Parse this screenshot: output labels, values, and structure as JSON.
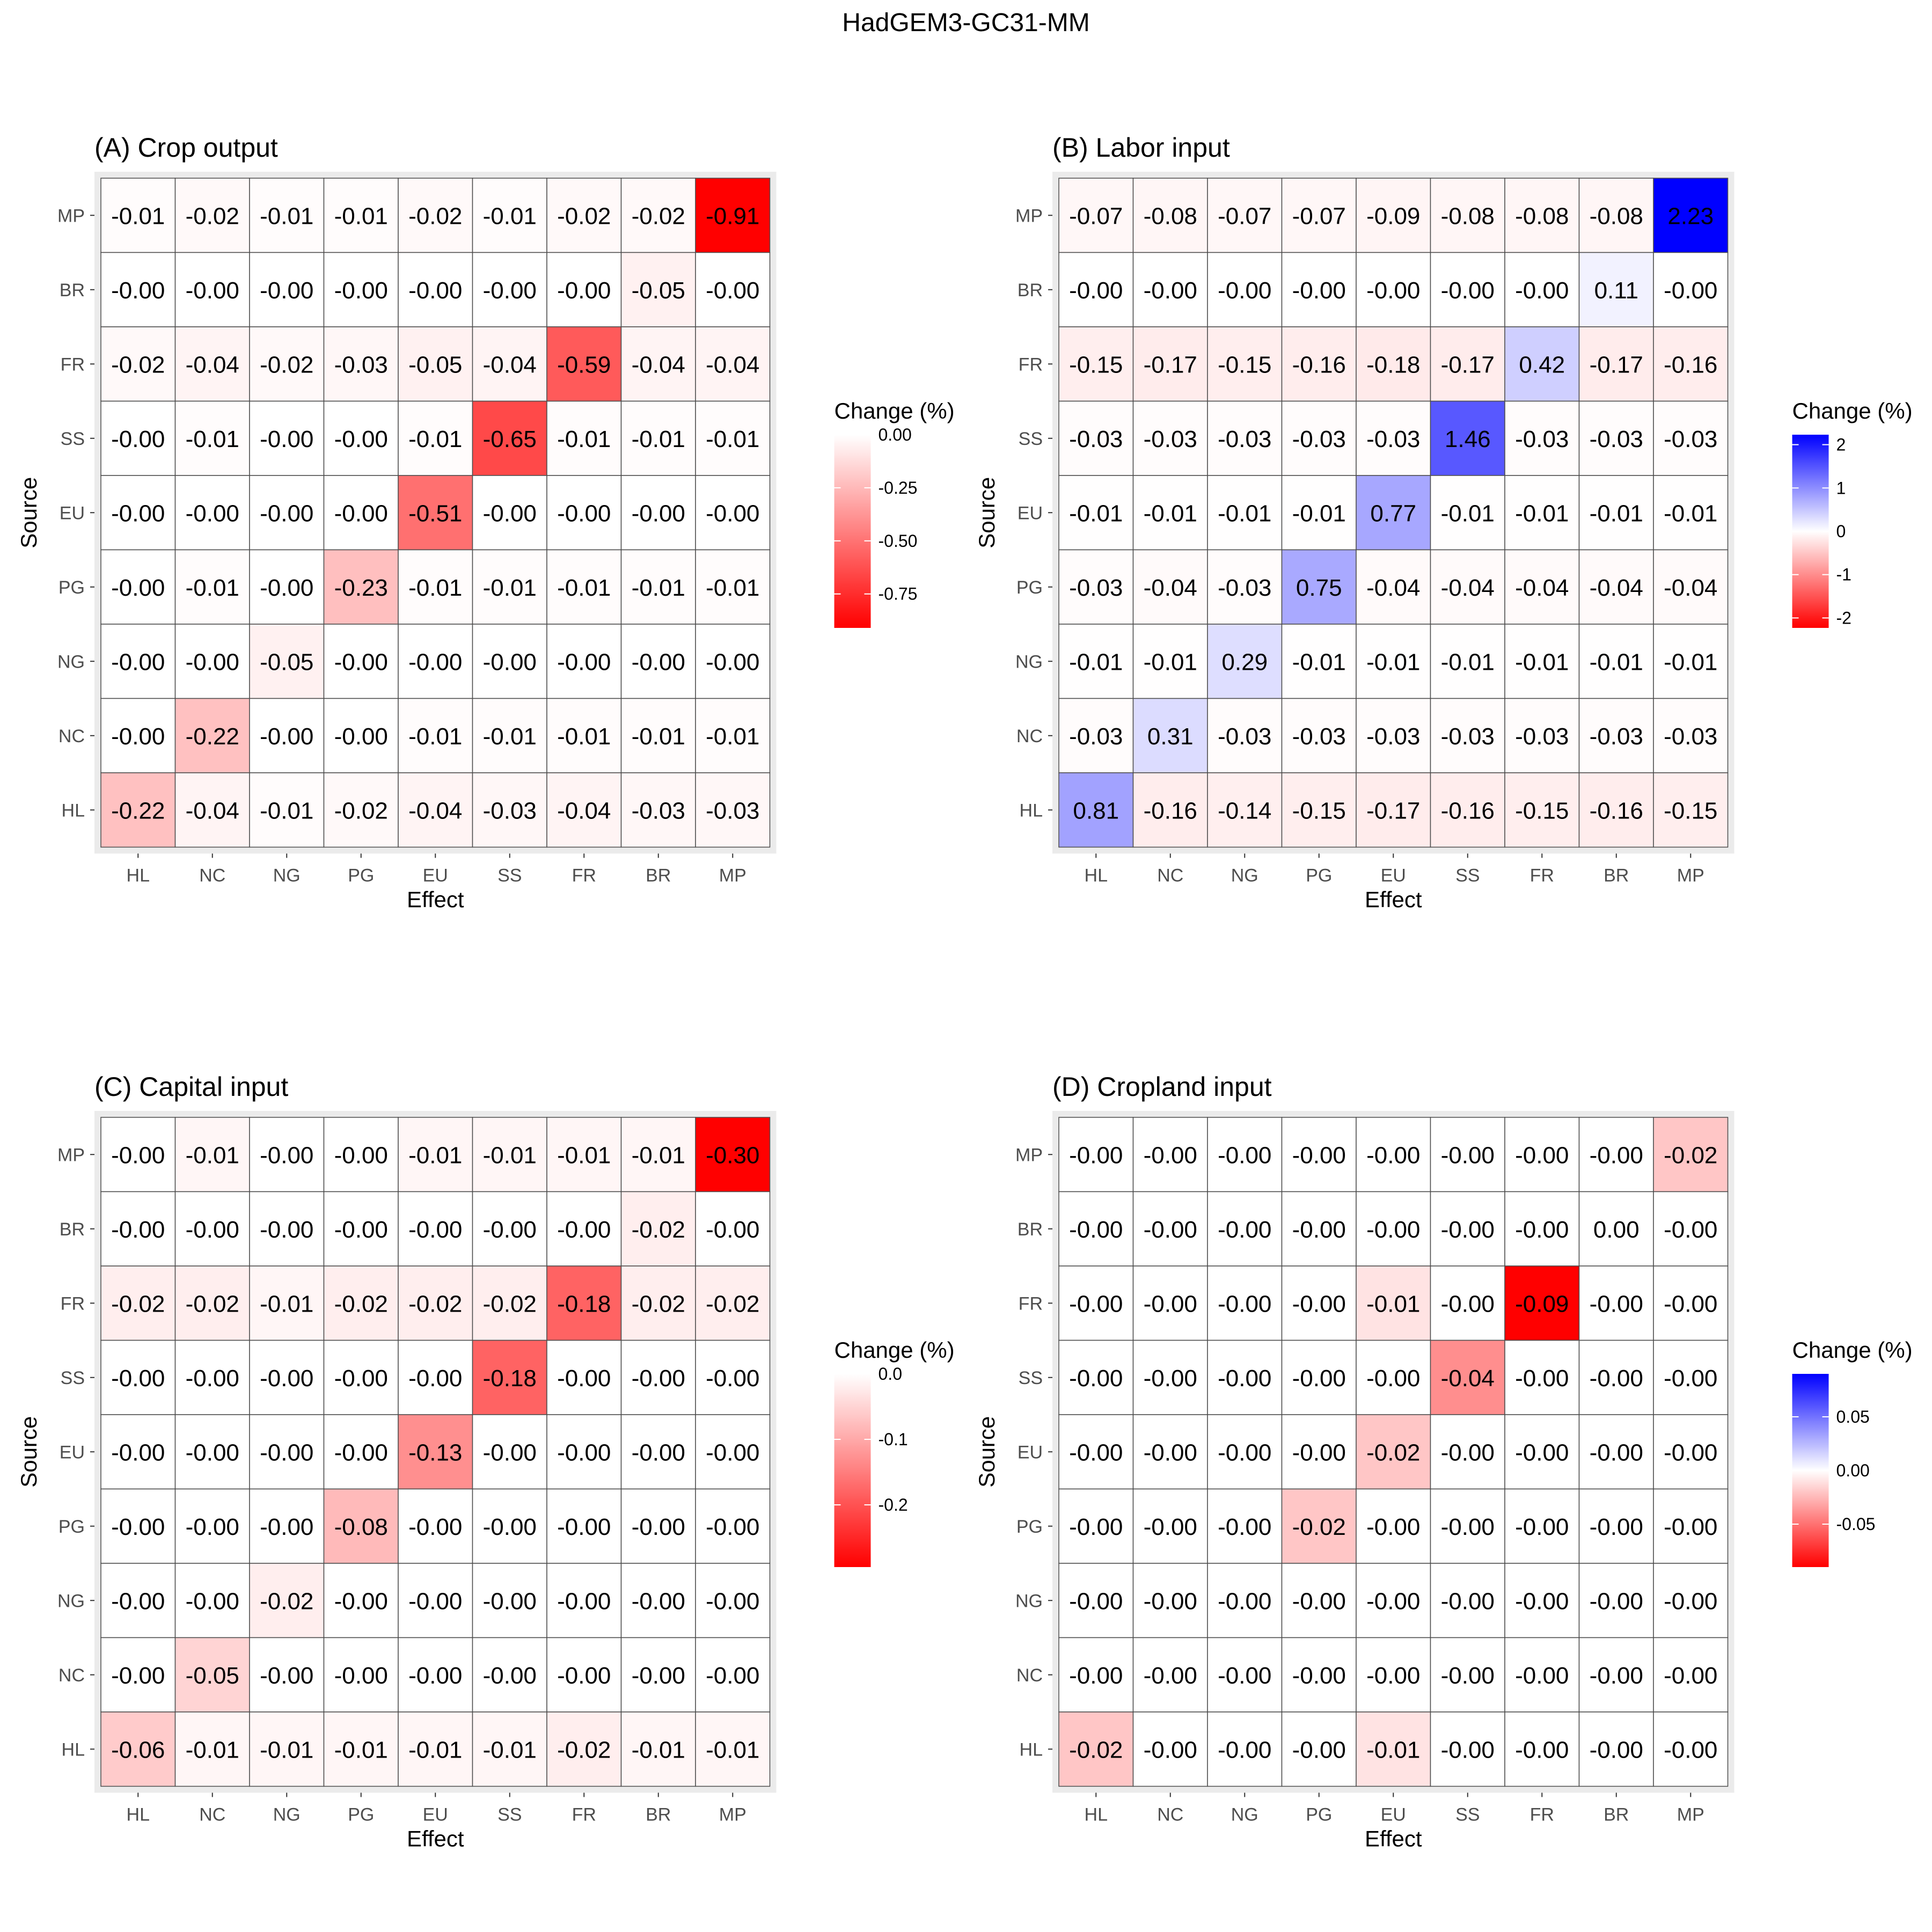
{
  "title": "HadGEM3-GC31-MM",
  "chart_data": [
    {
      "type": "heatmap",
      "title": "(A) Crop output",
      "xlabel": "Effect",
      "ylabel": "Source",
      "x_categories": [
        "HL",
        "NC",
        "NG",
        "PG",
        "EU",
        "SS",
        "FR",
        "BR",
        "MP"
      ],
      "y_categories": [
        "MP",
        "BR",
        "FR",
        "SS",
        "EU",
        "PG",
        "NG",
        "NC",
        "HL"
      ],
      "values": [
        [
          "-0.01",
          "-0.02",
          "-0.01",
          "-0.01",
          "-0.02",
          "-0.01",
          "-0.02",
          "-0.02",
          "-0.91"
        ],
        [
          "-0.00",
          "-0.00",
          "-0.00",
          "-0.00",
          "-0.00",
          "-0.00",
          "-0.00",
          "-0.05",
          "-0.00"
        ],
        [
          "-0.02",
          "-0.04",
          "-0.02",
          "-0.03",
          "-0.05",
          "-0.04",
          "-0.59",
          "-0.04",
          "-0.04"
        ],
        [
          "-0.00",
          "-0.01",
          "-0.00",
          "-0.00",
          "-0.01",
          "-0.65",
          "-0.01",
          "-0.01",
          "-0.01"
        ],
        [
          "-0.00",
          "-0.00",
          "-0.00",
          "-0.00",
          "-0.51",
          "-0.00",
          "-0.00",
          "-0.00",
          "-0.00"
        ],
        [
          "-0.00",
          "-0.01",
          "-0.00",
          "-0.23",
          "-0.01",
          "-0.01",
          "-0.01",
          "-0.01",
          "-0.01"
        ],
        [
          "-0.00",
          "-0.00",
          "-0.05",
          "-0.00",
          "-0.00",
          "-0.00",
          "-0.00",
          "-0.00",
          "-0.00"
        ],
        [
          "-0.00",
          "-0.22",
          "-0.00",
          "-0.00",
          "-0.01",
          "-0.01",
          "-0.01",
          "-0.01",
          "-0.01"
        ],
        [
          "-0.22",
          "-0.04",
          "-0.01",
          "-0.02",
          "-0.04",
          "-0.03",
          "-0.04",
          "-0.03",
          "-0.03"
        ]
      ],
      "legend": {
        "title": "Change (%)",
        "type": "red-white",
        "range": [
          -0.91,
          0
        ],
        "ticks": [
          0,
          -0.25,
          -0.5,
          -0.75
        ],
        "tick_labels": [
          "0.00",
          "-0.25",
          "-0.50",
          "-0.75"
        ]
      }
    },
    {
      "type": "heatmap",
      "title": "(B) Labor input",
      "xlabel": "Effect",
      "ylabel": "Source",
      "x_categories": [
        "HL",
        "NC",
        "NG",
        "PG",
        "EU",
        "SS",
        "FR",
        "BR",
        "MP"
      ],
      "y_categories": [
        "MP",
        "BR",
        "FR",
        "SS",
        "EU",
        "PG",
        "NG",
        "NC",
        "HL"
      ],
      "values": [
        [
          "-0.07",
          "-0.08",
          "-0.07",
          "-0.07",
          "-0.09",
          "-0.08",
          "-0.08",
          "-0.08",
          "2.23"
        ],
        [
          "-0.00",
          "-0.00",
          "-0.00",
          "-0.00",
          "-0.00",
          "-0.00",
          "-0.00",
          "0.11",
          "-0.00"
        ],
        [
          "-0.15",
          "-0.17",
          "-0.15",
          "-0.16",
          "-0.18",
          "-0.17",
          "0.42",
          "-0.17",
          "-0.16"
        ],
        [
          "-0.03",
          "-0.03",
          "-0.03",
          "-0.03",
          "-0.03",
          "1.46",
          "-0.03",
          "-0.03",
          "-0.03"
        ],
        [
          "-0.01",
          "-0.01",
          "-0.01",
          "-0.01",
          "0.77",
          "-0.01",
          "-0.01",
          "-0.01",
          "-0.01"
        ],
        [
          "-0.03",
          "-0.04",
          "-0.03",
          "0.75",
          "-0.04",
          "-0.04",
          "-0.04",
          "-0.04",
          "-0.04"
        ],
        [
          "-0.01",
          "-0.01",
          "0.29",
          "-0.01",
          "-0.01",
          "-0.01",
          "-0.01",
          "-0.01",
          "-0.01"
        ],
        [
          "-0.03",
          "0.31",
          "-0.03",
          "-0.03",
          "-0.03",
          "-0.03",
          "-0.03",
          "-0.03",
          "-0.03"
        ],
        [
          "0.81",
          "-0.16",
          "-0.14",
          "-0.15",
          "-0.17",
          "-0.16",
          "-0.15",
          "-0.16",
          "-0.15"
        ]
      ],
      "legend": {
        "title": "Change (%)",
        "type": "diverging",
        "range": [
          -2.23,
          2.23
        ],
        "ticks": [
          2,
          1,
          0,
          -1,
          -2
        ],
        "tick_labels": [
          "2",
          "1",
          "0",
          "-1",
          "-2"
        ]
      }
    },
    {
      "type": "heatmap",
      "title": "(C) Capital input",
      "xlabel": "Effect",
      "ylabel": "Source",
      "x_categories": [
        "HL",
        "NC",
        "NG",
        "PG",
        "EU",
        "SS",
        "FR",
        "BR",
        "MP"
      ],
      "y_categories": [
        "MP",
        "BR",
        "FR",
        "SS",
        "EU",
        "PG",
        "NG",
        "NC",
        "HL"
      ],
      "values": [
        [
          "-0.00",
          "-0.01",
          "-0.00",
          "-0.00",
          "-0.01",
          "-0.01",
          "-0.01",
          "-0.01",
          "-0.30"
        ],
        [
          "-0.00",
          "-0.00",
          "-0.00",
          "-0.00",
          "-0.00",
          "-0.00",
          "-0.00",
          "-0.02",
          "-0.00"
        ],
        [
          "-0.02",
          "-0.02",
          "-0.01",
          "-0.02",
          "-0.02",
          "-0.02",
          "-0.18",
          "-0.02",
          "-0.02"
        ],
        [
          "-0.00",
          "-0.00",
          "-0.00",
          "-0.00",
          "-0.00",
          "-0.18",
          "-0.00",
          "-0.00",
          "-0.00"
        ],
        [
          "-0.00",
          "-0.00",
          "-0.00",
          "-0.00",
          "-0.13",
          "-0.00",
          "-0.00",
          "-0.00",
          "-0.00"
        ],
        [
          "-0.00",
          "-0.00",
          "-0.00",
          "-0.08",
          "-0.00",
          "-0.00",
          "-0.00",
          "-0.00",
          "-0.00"
        ],
        [
          "-0.00",
          "-0.00",
          "-0.02",
          "-0.00",
          "-0.00",
          "-0.00",
          "-0.00",
          "-0.00",
          "-0.00"
        ],
        [
          "-0.00",
          "-0.05",
          "-0.00",
          "-0.00",
          "-0.00",
          "-0.00",
          "-0.00",
          "-0.00",
          "-0.00"
        ],
        [
          "-0.06",
          "-0.01",
          "-0.01",
          "-0.01",
          "-0.01",
          "-0.01",
          "-0.02",
          "-0.01",
          "-0.01"
        ]
      ],
      "legend": {
        "title": "Change (%)",
        "type": "red-white",
        "range": [
          -0.295,
          0
        ],
        "ticks": [
          0,
          -0.1,
          -0.2
        ],
        "tick_labels": [
          "0.0",
          "-0.1",
          "-0.2"
        ]
      }
    },
    {
      "type": "heatmap",
      "title": "(D) Cropland input",
      "xlabel": "Effect",
      "ylabel": "Source",
      "x_categories": [
        "HL",
        "NC",
        "NG",
        "PG",
        "EU",
        "SS",
        "FR",
        "BR",
        "MP"
      ],
      "y_categories": [
        "MP",
        "BR",
        "FR",
        "SS",
        "EU",
        "PG",
        "NG",
        "NC",
        "HL"
      ],
      "values": [
        [
          "-0.00",
          "-0.00",
          "-0.00",
          "-0.00",
          "-0.00",
          "-0.00",
          "-0.00",
          "-0.00",
          "-0.02"
        ],
        [
          "-0.00",
          "-0.00",
          "-0.00",
          "-0.00",
          "-0.00",
          "-0.00",
          "-0.00",
          "0.00",
          "-0.00"
        ],
        [
          "-0.00",
          "-0.00",
          "-0.00",
          "-0.00",
          "-0.01",
          "-0.00",
          "-0.09",
          "-0.00",
          "-0.00"
        ],
        [
          "-0.00",
          "-0.00",
          "-0.00",
          "-0.00",
          "-0.00",
          "-0.04",
          "-0.00",
          "-0.00",
          "-0.00"
        ],
        [
          "-0.00",
          "-0.00",
          "-0.00",
          "-0.00",
          "-0.02",
          "-0.00",
          "-0.00",
          "-0.00",
          "-0.00"
        ],
        [
          "-0.00",
          "-0.00",
          "-0.00",
          "-0.02",
          "-0.00",
          "-0.00",
          "-0.00",
          "-0.00",
          "-0.00"
        ],
        [
          "-0.00",
          "-0.00",
          "-0.00",
          "-0.00",
          "-0.00",
          "-0.00",
          "-0.00",
          "-0.00",
          "-0.00"
        ],
        [
          "-0.00",
          "-0.00",
          "-0.00",
          "-0.00",
          "-0.00",
          "-0.00",
          "-0.00",
          "-0.00",
          "-0.00"
        ],
        [
          "-0.02",
          "-0.00",
          "-0.00",
          "-0.00",
          "-0.01",
          "-0.00",
          "-0.00",
          "-0.00",
          "-0.00"
        ]
      ],
      "legend": {
        "title": "Change (%)",
        "type": "diverging",
        "range": [
          -0.09,
          0.09
        ],
        "ticks": [
          0.05,
          0,
          -0.05
        ],
        "tick_labels": [
          "0.05",
          "0.00",
          "-0.05"
        ]
      }
    }
  ]
}
